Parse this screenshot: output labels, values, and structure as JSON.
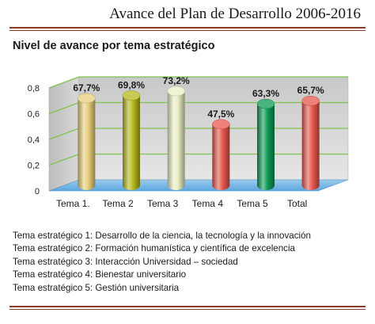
{
  "header": {
    "document_title": "Avance del Plan de Desarrollo 2006-2016"
  },
  "chart_title": "Nivel de avance por tema estratégico",
  "chart_data": {
    "type": "bar",
    "title": "Nivel de avance por tema estratégico",
    "categories": [
      "Tema 1.",
      "Tema 2",
      "Tema 3",
      "Tema 4",
      "Tema 5",
      "Total"
    ],
    "values": [
      0.677,
      0.698,
      0.732,
      0.475,
      0.633,
      0.657
    ],
    "value_labels": [
      "67,7%",
      "69,8%",
      "73,2%",
      "47,5%",
      "63,3%",
      "65,7%"
    ],
    "y_ticks": [
      "0",
      "0,2",
      "0,4",
      "0,6",
      "0,8"
    ],
    "y_tick_values": [
      0,
      0.2,
      0.4,
      0.6,
      0.8
    ],
    "ylim": [
      0,
      0.8
    ],
    "grid": true,
    "style": "3d-cylinder",
    "bar_colors": [
      "#e8cf7a",
      "#b7b81c",
      "#e9efc4",
      "#e8574e",
      "#0e9a55",
      "#e8574e"
    ],
    "wall_color": "#d5d5d5",
    "floor_color": "#5aa6de",
    "grid_color": "#7fc34a"
  },
  "notes": [
    "Tema estratégico 1: Desarrollo de la ciencia, la tecnología y la innovación",
    "Tema estratégico 2: Formación humanística y científica de excelencia",
    "Tema estratégico 3: Interacción Universidad – sociedad",
    "Tema estratégico 4: Bienestar universitario",
    "Tema estratégico 5: Gestión universitaria"
  ]
}
